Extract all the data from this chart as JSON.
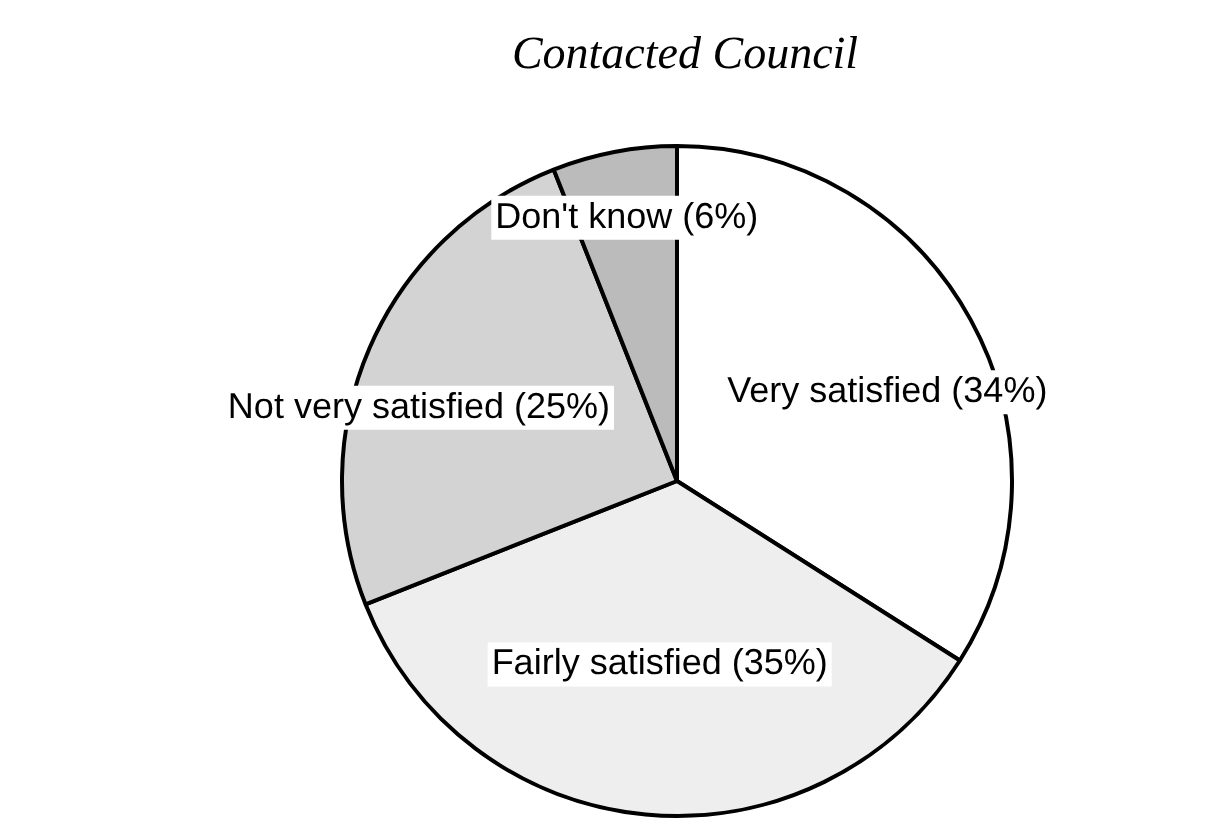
{
  "chart_data": {
    "type": "pie",
    "title": "Contacted Council",
    "categories": [
      "Very satisfied (34%)",
      "Fairly satisfied (35%)",
      "Not very satisfied (25%)",
      "Don't know (6%)"
    ],
    "values": [
      34,
      35,
      25,
      6
    ],
    "colors": [
      "#ffffff",
      "#eeeeee",
      "#d3d3d3",
      "#bbbbbb"
    ],
    "legend": false
  }
}
